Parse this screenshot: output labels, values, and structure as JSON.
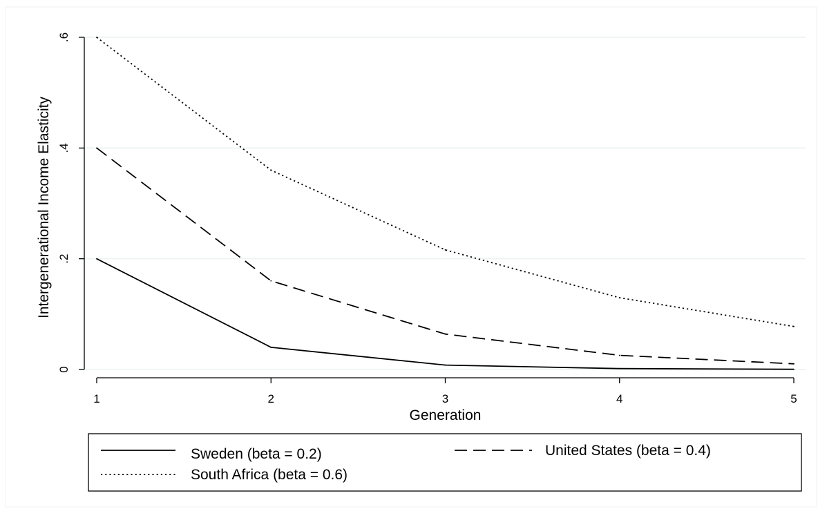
{
  "chart_data": {
    "type": "line",
    "xlabel": "Generation",
    "ylabel": "Intergenerational Income Elasticity",
    "x": [
      1,
      2,
      3,
      4,
      5
    ],
    "xlim": [
      1,
      5
    ],
    "ylim": [
      0,
      0.6
    ],
    "xticks": [
      1,
      2,
      3,
      4,
      5
    ],
    "xtick_labels": [
      "1",
      "2",
      "3",
      "4",
      "5"
    ],
    "yticks": [
      0,
      0.2,
      0.4,
      0.6
    ],
    "ytick_labels": [
      "0",
      ".2",
      ".4",
      ".6"
    ],
    "grid": "horizontal",
    "legend_position": "bottom",
    "series": [
      {
        "name": "Sweden (beta = 0.2)",
        "style": "solid",
        "values": [
          0.2,
          0.04,
          0.008,
          0.0016,
          0.00032
        ]
      },
      {
        "name": "United States (beta = 0.4)",
        "style": "dashed",
        "values": [
          0.4,
          0.16,
          0.064,
          0.0256,
          0.01024
        ]
      },
      {
        "name": "South Africa (beta = 0.6)",
        "style": "dotted",
        "values": [
          0.6,
          0.36,
          0.216,
          0.1296,
          0.07776
        ]
      }
    ],
    "colors": {
      "line": "#000000",
      "grid": "#eaf2f3",
      "background": "#ffffff"
    }
  }
}
